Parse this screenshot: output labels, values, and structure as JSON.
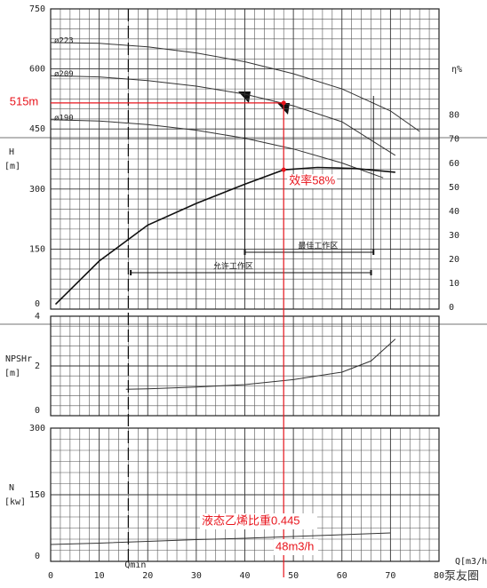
{
  "watermark": "泵友圈",
  "chart_data": [
    {
      "type": "line",
      "ylabel": "H",
      "yunit": "[m]",
      "y2label": "η%",
      "xlim": [
        0,
        80
      ],
      "ylim": [
        0,
        750
      ],
      "yticks": [
        0,
        150,
        300,
        450,
        600,
        750
      ],
      "y2lim": [
        0,
        125
      ],
      "y2ticks": [
        0,
        10,
        20,
        30,
        40,
        50,
        60,
        70,
        80
      ],
      "series": [
        {
          "name": "ø223",
          "color": "#333333",
          "x": [
            0,
            10,
            20,
            30,
            40,
            50,
            60,
            70,
            76
          ],
          "values": [
            666,
            664,
            655,
            640,
            618,
            588,
            550,
            495,
            444
          ]
        },
        {
          "name": "ø209",
          "color": "#333333",
          "x": [
            0,
            10,
            20,
            30,
            40,
            50,
            60,
            71
          ],
          "values": [
            583,
            580,
            571,
            557,
            537,
            508,
            468,
            384
          ]
        },
        {
          "name": "ø190",
          "color": "#333333",
          "x": [
            0,
            10,
            20,
            30,
            40,
            50,
            60,
            68.5
          ],
          "values": [
            473,
            470,
            461,
            447,
            427,
            400,
            365,
            328
          ]
        },
        {
          "axis": "y2",
          "color": "#111111",
          "x": [
            1,
            10,
            20,
            30,
            40,
            48,
            55,
            63,
            71
          ],
          "values": [
            2,
            20,
            35,
            44,
            52,
            58,
            59,
            58.5,
            57
          ]
        }
      ],
      "zones": [
        {
          "label": "最佳工作区",
          "range": [
            40,
            66.5
          ]
        },
        {
          "label": "允许工作区",
          "range": [
            16.5,
            66
          ]
        }
      ],
      "operating_point": {
        "x": 48,
        "y": 515,
        "y_label": "515m",
        "efficiency": 58,
        "efficiency_label": "效率58%"
      }
    },
    {
      "type": "line",
      "ylabel": "NPSHr",
      "yunit": "[m]",
      "xlim": [
        0,
        80
      ],
      "ylim": [
        0,
        4
      ],
      "yticks": [
        0,
        2,
        4
      ],
      "series": [
        {
          "color": "#333333",
          "x": [
            15.5,
            20,
            30,
            40,
            50,
            60,
            66,
            71
          ],
          "values": [
            1.06,
            1.08,
            1.15,
            1.25,
            1.45,
            1.75,
            2.2,
            3.08
          ]
        }
      ]
    },
    {
      "type": "line",
      "ylabel": "N",
      "yunit": "[kw]",
      "xlabel": "Q[m3/h]",
      "xlim": [
        0,
        80
      ],
      "xticks": [
        0,
        10,
        20,
        30,
        40,
        50,
        60,
        70,
        80
      ],
      "ylim": [
        0,
        300
      ],
      "yticks": [
        0,
        150,
        300
      ],
      "series": [
        {
          "color": "#333333",
          "x": [
            0,
            10,
            20,
            30,
            40,
            50,
            60,
            70
          ],
          "values": [
            38,
            41,
            45,
            49,
            52,
            56,
            60,
            64
          ]
        }
      ],
      "qmin": {
        "label": "Qmin",
        "x": 16
      },
      "annotations": [
        "液态乙烯比重0.445",
        "48m3/h"
      ]
    }
  ]
}
